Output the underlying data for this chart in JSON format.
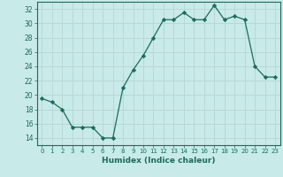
{
  "x": [
    0,
    1,
    2,
    3,
    4,
    5,
    6,
    7,
    8,
    9,
    10,
    11,
    12,
    13,
    14,
    15,
    16,
    17,
    18,
    19,
    20,
    21,
    22,
    23
  ],
  "y": [
    19.5,
    19.0,
    18.0,
    15.5,
    15.5,
    15.5,
    14.0,
    14.0,
    21.0,
    23.5,
    25.5,
    28.0,
    30.5,
    30.5,
    31.5,
    30.5,
    30.5,
    32.5,
    30.5,
    31.0,
    30.5,
    24.0,
    22.5,
    22.5
  ],
  "line_color": "#1a6b5e",
  "marker": "D",
  "marker_size": 2.2,
  "bg_color": "#c8eae8",
  "grid_color": "#b8d8d4",
  "xlabel": "Humidex (Indice chaleur)",
  "ylim": [
    13,
    33
  ],
  "xlim": [
    -0.5,
    23.5
  ],
  "yticks": [
    14,
    16,
    18,
    20,
    22,
    24,
    26,
    28,
    30,
    32
  ],
  "xticks": [
    0,
    1,
    2,
    3,
    4,
    5,
    6,
    7,
    8,
    9,
    10,
    11,
    12,
    13,
    14,
    15,
    16,
    17,
    18,
    19,
    20,
    21,
    22,
    23
  ]
}
